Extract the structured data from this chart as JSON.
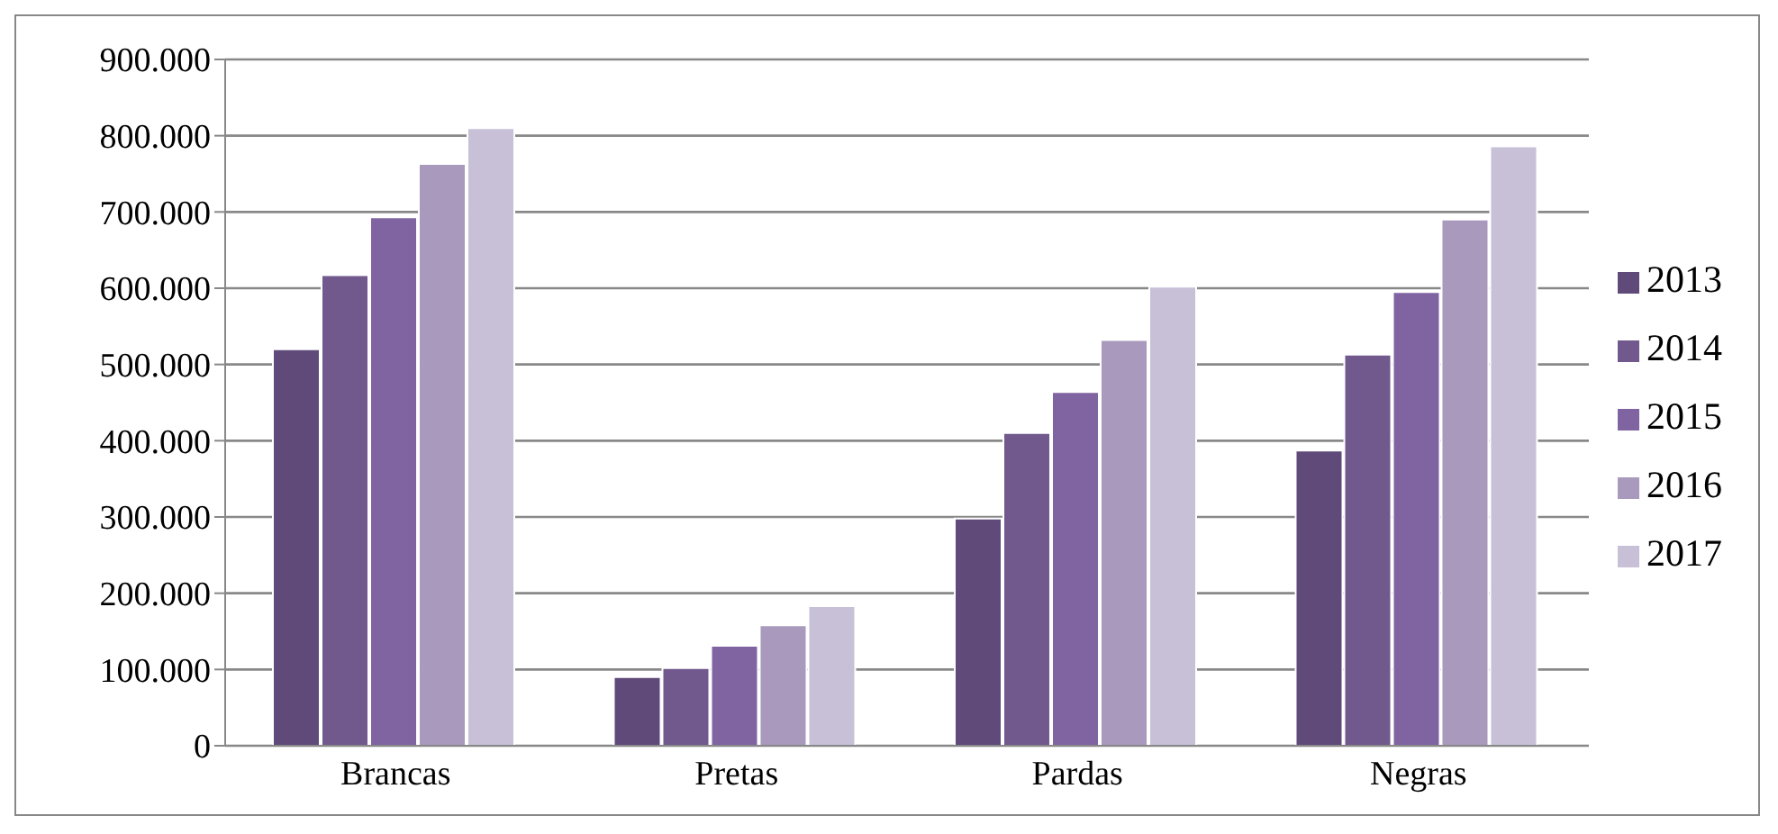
{
  "chart_data": {
    "type": "bar",
    "categories": [
      "Brancas",
      "Pretas",
      "Pardas",
      "Negras"
    ],
    "series": [
      {
        "name": "2013",
        "color": "#5f4a7a",
        "values": [
          520000,
          90000,
          298000,
          387000
        ]
      },
      {
        "name": "2014",
        "color": "#71598d",
        "values": [
          617000,
          102000,
          410000,
          513000
        ]
      },
      {
        "name": "2015",
        "color": "#8064a2",
        "values": [
          693000,
          131000,
          464000,
          595000
        ]
      },
      {
        "name": "2016",
        "color": "#a899bd",
        "values": [
          763000,
          158000,
          532000,
          690000
        ]
      },
      {
        "name": "2017",
        "color": "#c7c0d7",
        "values": [
          810000,
          183000,
          602000,
          786000
        ]
      }
    ],
    "ylim": [
      0,
      900000
    ],
    "yticks": [
      {
        "value": 0,
        "label": "0"
      },
      {
        "value": 100000,
        "label": "100.000"
      },
      {
        "value": 200000,
        "label": "200.000"
      },
      {
        "value": 300000,
        "label": "300.000"
      },
      {
        "value": 400000,
        "label": "400.000"
      },
      {
        "value": 500000,
        "label": "500.000"
      },
      {
        "value": 600000,
        "label": "600.000"
      },
      {
        "value": 700000,
        "label": "700.000"
      },
      {
        "value": 800000,
        "label": "800.000"
      },
      {
        "value": 900000,
        "label": "900.000"
      }
    ],
    "grid": "y",
    "legend": "right"
  }
}
